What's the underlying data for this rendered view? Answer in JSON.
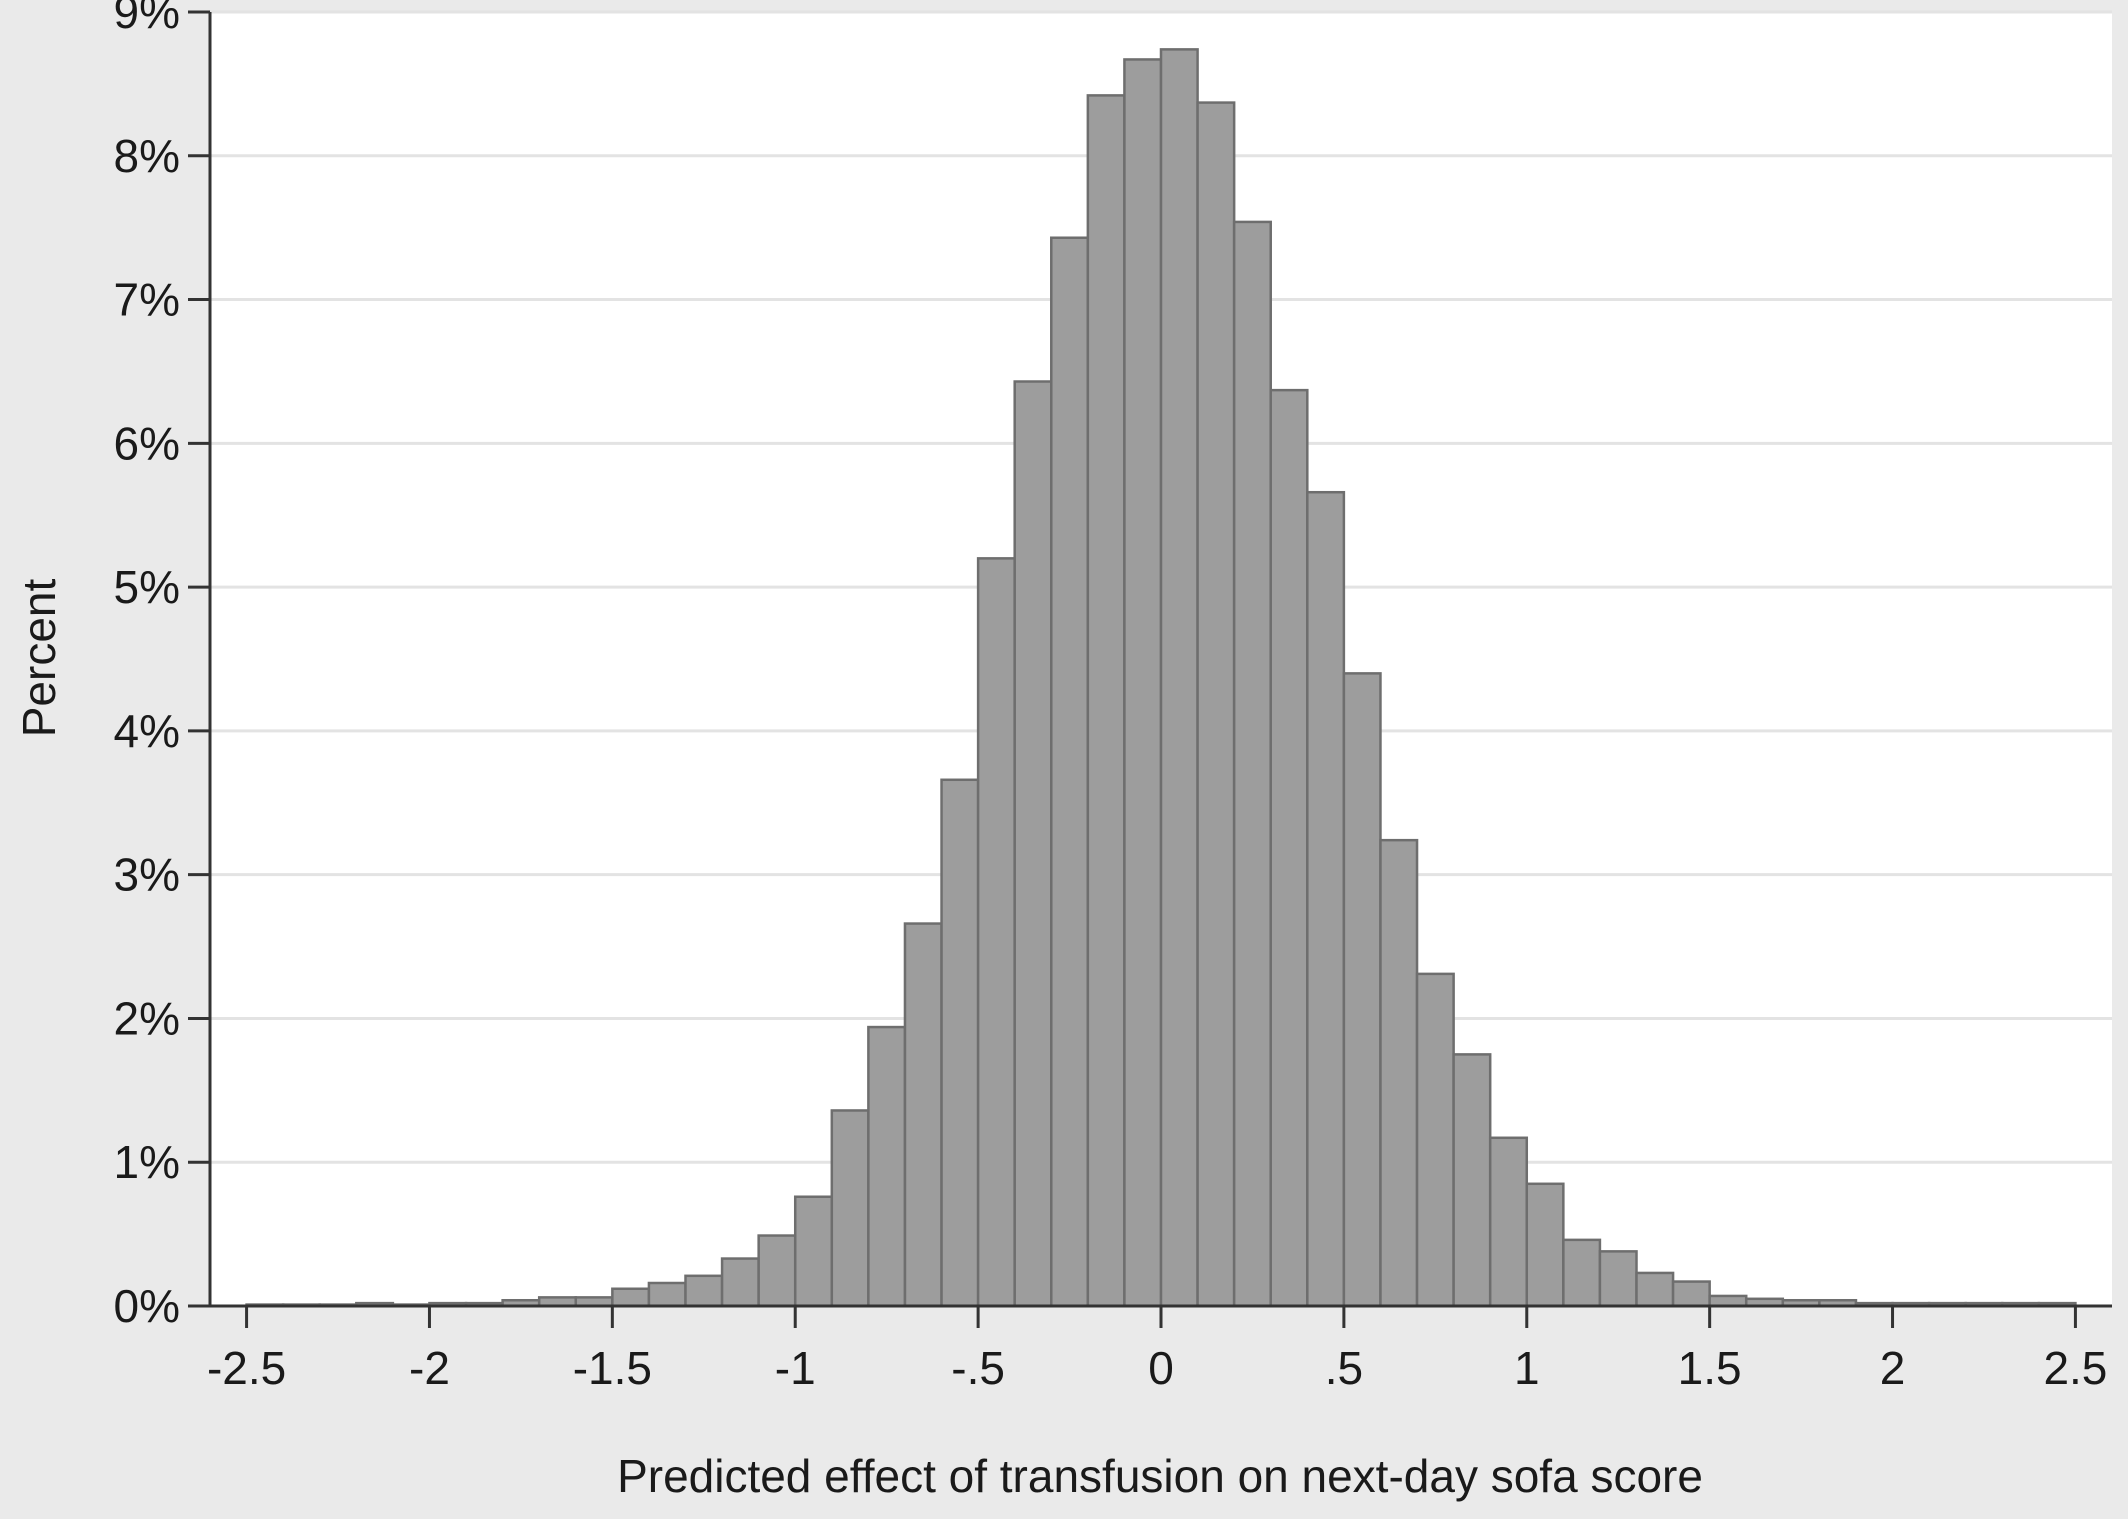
{
  "chart_data": {
    "type": "bar",
    "title": "",
    "xlabel": "Predicted effect of transfusion on next-day sofa score",
    "ylabel": "Percent",
    "xlim": [
      -2.6,
      2.6
    ],
    "ylim": [
      0,
      9
    ],
    "grid": true,
    "bin_width": 0.1,
    "x_ticks": [
      {
        "value": -2.5,
        "label": "-2.5"
      },
      {
        "value": -2,
        "label": "-2"
      },
      {
        "value": -1.5,
        "label": "-1.5"
      },
      {
        "value": -1,
        "label": "-1"
      },
      {
        "value": -0.5,
        "label": "-.5"
      },
      {
        "value": 0,
        "label": "0"
      },
      {
        "value": 0.5,
        "label": ".5"
      },
      {
        "value": 1,
        "label": "1"
      },
      {
        "value": 1.5,
        "label": "1.5"
      },
      {
        "value": 2,
        "label": "2"
      },
      {
        "value": 2.5,
        "label": "2.5"
      }
    ],
    "y_ticks": [
      {
        "value": 0,
        "label": "0%"
      },
      {
        "value": 1,
        "label": "1%"
      },
      {
        "value": 2,
        "label": "2%"
      },
      {
        "value": 3,
        "label": "3%"
      },
      {
        "value": 4,
        "label": "4%"
      },
      {
        "value": 5,
        "label": "5%"
      },
      {
        "value": 6,
        "label": "6%"
      },
      {
        "value": 7,
        "label": "7%"
      },
      {
        "value": 8,
        "label": "8%"
      },
      {
        "value": 9,
        "label": "9%"
      }
    ],
    "bins": [
      {
        "x0": -2.5,
        "x1": -2.4,
        "value": 0.01
      },
      {
        "x0": -2.4,
        "x1": -2.3,
        "value": 0.01
      },
      {
        "x0": -2.3,
        "x1": -2.2,
        "value": 0.01
      },
      {
        "x0": -2.2,
        "x1": -2.1,
        "value": 0.02
      },
      {
        "x0": -2.1,
        "x1": -2.0,
        "value": 0.01
      },
      {
        "x0": -2.0,
        "x1": -1.9,
        "value": 0.02
      },
      {
        "x0": -1.9,
        "x1": -1.8,
        "value": 0.02
      },
      {
        "x0": -1.8,
        "x1": -1.7,
        "value": 0.04
      },
      {
        "x0": -1.7,
        "x1": -1.6,
        "value": 0.06
      },
      {
        "x0": -1.6,
        "x1": -1.5,
        "value": 0.06
      },
      {
        "x0": -1.5,
        "x1": -1.4,
        "value": 0.12
      },
      {
        "x0": -1.4,
        "x1": -1.3,
        "value": 0.16
      },
      {
        "x0": -1.3,
        "x1": -1.2,
        "value": 0.21
      },
      {
        "x0": -1.2,
        "x1": -1.1,
        "value": 0.33
      },
      {
        "x0": -1.1,
        "x1": -1.0,
        "value": 0.49
      },
      {
        "x0": -1.0,
        "x1": -0.9,
        "value": 0.76
      },
      {
        "x0": -0.9,
        "x1": -0.8,
        "value": 1.36
      },
      {
        "x0": -0.8,
        "x1": -0.7,
        "value": 1.94
      },
      {
        "x0": -0.7,
        "x1": -0.6,
        "value": 2.66
      },
      {
        "x0": -0.6,
        "x1": -0.5,
        "value": 3.66
      },
      {
        "x0": -0.5,
        "x1": -0.4,
        "value": 5.2
      },
      {
        "x0": -0.4,
        "x1": -0.3,
        "value": 6.43
      },
      {
        "x0": -0.3,
        "x1": -0.2,
        "value": 7.43
      },
      {
        "x0": -0.2,
        "x1": -0.1,
        "value": 8.42
      },
      {
        "x0": -0.1,
        "x1": 0.0,
        "value": 8.67
      },
      {
        "x0": 0.0,
        "x1": 0.1,
        "value": 8.74
      },
      {
        "x0": 0.1,
        "x1": 0.2,
        "value": 8.37
      },
      {
        "x0": 0.2,
        "x1": 0.3,
        "value": 7.54
      },
      {
        "x0": 0.3,
        "x1": 0.4,
        "value": 6.37
      },
      {
        "x0": 0.4,
        "x1": 0.5,
        "value": 5.66
      },
      {
        "x0": 0.5,
        "x1": 0.6,
        "value": 4.4
      },
      {
        "x0": 0.6,
        "x1": 0.7,
        "value": 3.24
      },
      {
        "x0": 0.7,
        "x1": 0.8,
        "value": 2.31
      },
      {
        "x0": 0.8,
        "x1": 0.9,
        "value": 1.75
      },
      {
        "x0": 0.9,
        "x1": 1.0,
        "value": 1.17
      },
      {
        "x0": 1.0,
        "x1": 1.1,
        "value": 0.85
      },
      {
        "x0": 1.1,
        "x1": 1.2,
        "value": 0.46
      },
      {
        "x0": 1.2,
        "x1": 1.3,
        "value": 0.38
      },
      {
        "x0": 1.3,
        "x1": 1.4,
        "value": 0.23
      },
      {
        "x0": 1.4,
        "x1": 1.5,
        "value": 0.17
      },
      {
        "x0": 1.5,
        "x1": 1.6,
        "value": 0.07
      },
      {
        "x0": 1.6,
        "x1": 1.7,
        "value": 0.05
      },
      {
        "x0": 1.7,
        "x1": 1.8,
        "value": 0.04
      },
      {
        "x0": 1.8,
        "x1": 1.9,
        "value": 0.04
      },
      {
        "x0": 1.9,
        "x1": 2.0,
        "value": 0.02
      },
      {
        "x0": 2.0,
        "x1": 2.1,
        "value": 0.02
      },
      {
        "x0": 2.1,
        "x1": 2.2,
        "value": 0.02
      },
      {
        "x0": 2.2,
        "x1": 2.3,
        "value": 0.02
      },
      {
        "x0": 2.3,
        "x1": 2.4,
        "value": 0.02
      },
      {
        "x0": 2.4,
        "x1": 2.5,
        "value": 0.02
      }
    ],
    "colors": {
      "bar_fill": "#9d9d9d",
      "bar_stroke": "#6e6e6e",
      "plot_background": "#ffffff",
      "outer_background": "#eaeaea",
      "grid": "#e3e3e3",
      "axis": "#333333",
      "text": "#1a1a1a"
    }
  }
}
